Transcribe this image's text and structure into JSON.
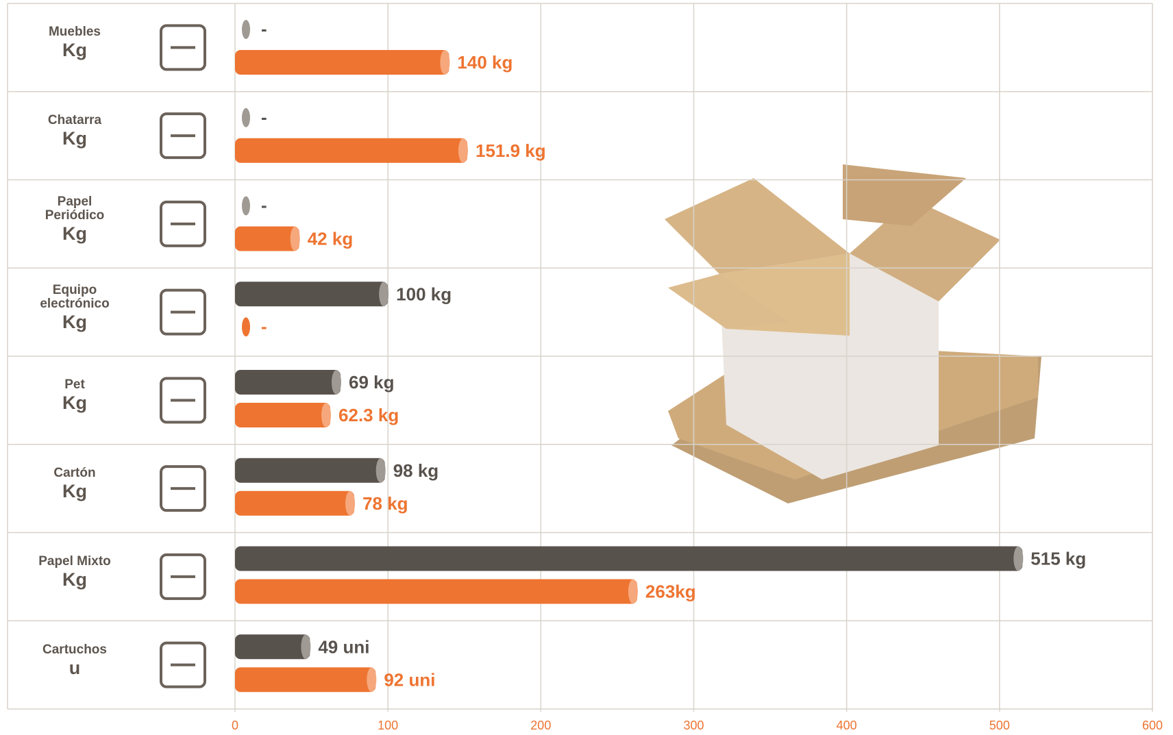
{
  "chart_data": {
    "type": "bar",
    "orientation": "horizontal",
    "categories": [
      "Muebles",
      "Chatarra",
      "Papel Periódico",
      "Equipo electrónico",
      "Pet",
      "Cartón",
      "Papel Mixto",
      "Cartuchos"
    ],
    "units": [
      "Kg",
      "Kg",
      "Kg",
      "Kg",
      "Kg",
      "Kg",
      "Kg",
      "u"
    ],
    "series": [
      {
        "color": "#58524d",
        "values": [
          null,
          null,
          null,
          100,
          69,
          98,
          515,
          49
        ],
        "value_labels": [
          "-",
          "-",
          "-",
          "100 kg",
          "69 kg",
          "98 kg",
          "515 kg",
          "49 uni"
        ]
      },
      {
        "color": "#ee7431",
        "values": [
          140,
          151.9,
          42,
          null,
          62.3,
          78,
          263,
          92
        ],
        "value_labels": [
          "140 kg",
          "151.9 kg",
          "42 kg",
          "-",
          "62.3 kg",
          "78 kg",
          "263kg",
          "92 uni"
        ]
      }
    ],
    "xlim": [
      0,
      600
    ],
    "xticks": [
      0,
      100,
      200,
      300,
      400,
      500,
      600
    ],
    "grid": true
  }
}
